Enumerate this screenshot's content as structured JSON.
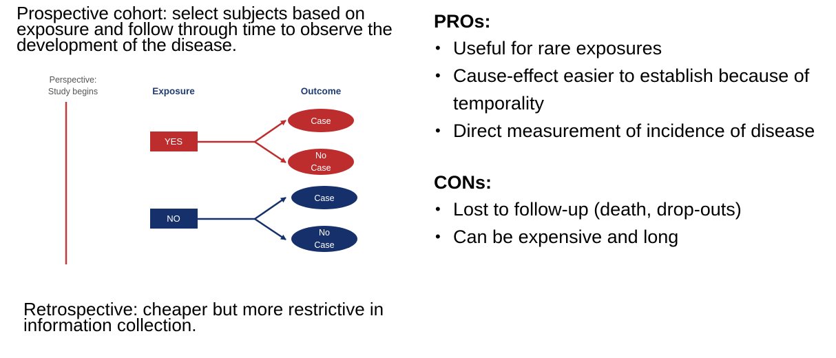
{
  "intro": "Prospective cohort: select subjects based on exposure and follow through time to observe the development of the disease.",
  "retrospective": "Retrospective: cheaper but more restrictive in information collection.",
  "diagram": {
    "perspective_label_1": "Perspective:",
    "perspective_label_2": "Study begins",
    "exposure_header": "Exposure",
    "outcome_header": "Outcome",
    "yes_label": "YES",
    "no_label": "NO",
    "yes_case": "Case",
    "yes_nocase_1": "No",
    "yes_nocase_2": "Case",
    "no_case": "Case",
    "no_nocase_1": "No",
    "no_nocase_2": "Case",
    "colors": {
      "red": "#be2d2d",
      "navy": "#16306b",
      "header": "#1f3b73",
      "timeline": "#c0393b"
    }
  },
  "pros": {
    "heading": "PROs:",
    "items": [
      "Useful for rare exposures",
      "Cause-effect easier to establish because of temporality",
      "Direct measurement of incidence of disease"
    ]
  },
  "cons": {
    "heading": "CONs:",
    "items": [
      "Lost to follow-up (death, drop-outs)",
      "Can be expensive and long"
    ]
  },
  "bullet_glyph": "•"
}
